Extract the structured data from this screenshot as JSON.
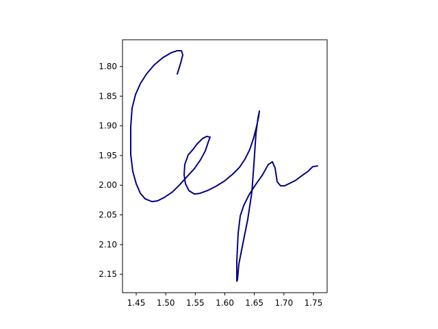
{
  "chart_data": {
    "type": "line",
    "x": [
      1.5195,
      1.5253,
      1.5288,
      1.5265,
      1.5195,
      1.5091,
      1.4952,
      1.4801,
      1.4674,
      1.457,
      1.4488,
      1.443,
      1.4407,
      1.4407,
      1.4442,
      1.45,
      1.457,
      1.4651,
      1.4766,
      1.4859,
      1.4975,
      1.5114,
      1.523,
      1.5346,
      1.5485,
      1.5589,
      1.567,
      1.5728,
      1.5751,
      1.5693,
      1.5624,
      1.5531,
      1.5461,
      1.538,
      1.5322,
      1.5311,
      1.5334,
      1.5392,
      1.5485,
      1.5577,
      1.5705,
      1.5844,
      1.5994,
      1.6133,
      1.6249,
      1.6342,
      1.6423,
      1.6492,
      1.6539,
      1.6573,
      1.6585,
      1.6562,
      1.6527,
      1.6492,
      1.6458,
      1.6388,
      1.6295,
      1.6238,
      1.6214,
      1.6203,
      1.6203,
      1.6226,
      1.6261,
      1.6319,
      1.6411,
      1.6516,
      1.6631,
      1.6736,
      1.6805,
      1.6851,
      1.6886,
      1.6944,
      1.7014,
      1.7106,
      1.7199,
      1.7292,
      1.7407,
      1.7489,
      1.757
    ],
    "y": [
      1.8127,
      1.7942,
      1.7804,
      1.7734,
      1.7734,
      1.7769,
      1.785,
      1.7977,
      1.8127,
      1.8289,
      1.8474,
      1.8705,
      1.9017,
      1.9479,
      1.9767,
      1.9975,
      2.0137,
      2.0229,
      2.0276,
      2.0264,
      2.0206,
      2.0114,
      1.9998,
      1.9871,
      1.9721,
      1.9571,
      1.9421,
      1.9248,
      1.919,
      1.9178,
      1.9213,
      1.9305,
      1.9398,
      1.949,
      1.9652,
      1.9825,
      1.9975,
      2.0091,
      2.0149,
      2.0137,
      2.0091,
      2.0022,
      1.993,
      1.9814,
      1.9698,
      1.9559,
      1.9398,
      1.919,
      1.9005,
      1.8843,
      1.8751,
      1.8866,
      1.9132,
      1.9652,
      2.0114,
      2.0576,
      2.1038,
      2.1327,
      2.1593,
      2.1616,
      2.1269,
      2.0807,
      2.0518,
      2.0345,
      2.016,
      1.9998,
      1.9837,
      1.9652,
      1.9606,
      1.971,
      1.9941,
      2.001,
      2.001,
      1.9964,
      1.9918,
      1.9848,
      1.9767,
      1.9687,
      1.9675
    ],
    "color": "#000080",
    "xlim": [
      1.4268,
      1.7732
    ],
    "ylim": [
      2.181,
      1.755
    ],
    "xticks": [
      1.45,
      {
        "value": 1.5,
        "label": "1.50"
      },
      1.55,
      {
        "value": 1.6,
        "label": "1.60"
      },
      1.65,
      {
        "value": 1.7,
        "label": "1.70"
      },
      1.75
    ],
    "yticks": [
      {
        "value": 1.8,
        "label": "1.80"
      },
      1.85,
      {
        "value": 1.9,
        "label": "1.90"
      },
      1.95,
      {
        "value": 2.0,
        "label": "2.00"
      },
      2.05,
      {
        "value": 2.1,
        "label": "2.10"
      },
      2.15
    ]
  }
}
